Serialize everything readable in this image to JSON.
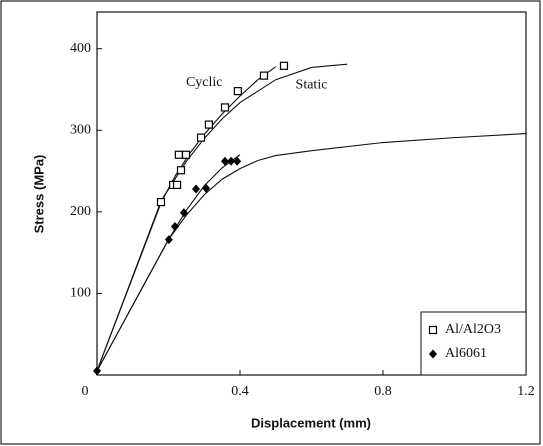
{
  "chart_data": {
    "type": "scatter",
    "xlabel": "Displacement (mm)",
    "ylabel": "Stress (MPa)",
    "xlim": [
      0,
      1.2
    ],
    "ylim": [
      0,
      445
    ],
    "xticks": [
      0,
      0.4,
      0.8,
      1.2
    ],
    "yticks": [
      100,
      200,
      300,
      400
    ],
    "legend": "lower right",
    "annotations": [
      {
        "text": "Cyclic",
        "x": 0.3,
        "y": 358
      },
      {
        "text": "Static",
        "x": 0.6,
        "y": 355
      }
    ],
    "series": [
      {
        "name": "Al/Al2O3",
        "marker": "square",
        "color": "#000000",
        "x": [
          0.179,
          0.213,
          0.224,
          0.229,
          0.235,
          0.249,
          0.291,
          0.313,
          0.358,
          0.394,
          0.467,
          0.523
        ],
        "values": [
          212,
          233,
          233,
          270,
          251,
          270,
          291,
          307,
          328,
          348,
          367,
          379
        ]
      },
      {
        "name": "Al6061",
        "marker": "diamond",
        "color": "#000000",
        "x": [
          0,
          0.201,
          0.218,
          0.243,
          0.277,
          0.305,
          0.358,
          0.375,
          0.392
        ],
        "values": [
          5,
          166,
          182,
          199,
          228,
          229,
          262,
          262,
          262
        ]
      }
    ],
    "curves": [
      {
        "x": [
          0,
          0.18,
          0.22,
          0.26,
          0.3,
          0.35,
          0.4,
          0.45,
          0.5
        ],
        "values": [
          5,
          212,
          245,
          272,
          295,
          320,
          342,
          362,
          378
        ]
      },
      {
        "x": [
          0,
          0.18,
          0.25,
          0.3,
          0.35,
          0.4,
          0.5,
          0.6,
          0.7
        ],
        "values": [
          5,
          214,
          262,
          290,
          314,
          334,
          362,
          377,
          381
        ]
      },
      {
        "x": [
          0,
          0.2,
          0.25,
          0.3,
          0.35,
          0.4
        ],
        "values": [
          5,
          166,
          202,
          232,
          254,
          270
        ]
      },
      {
        "x": [
          0,
          0.2,
          0.25,
          0.3,
          0.35,
          0.4,
          0.45,
          0.5,
          0.6,
          0.8,
          1.0,
          1.2
        ],
        "values": [
          5,
          166,
          196,
          221,
          240,
          253,
          263,
          269,
          275,
          285,
          291,
          296
        ]
      }
    ]
  }
}
